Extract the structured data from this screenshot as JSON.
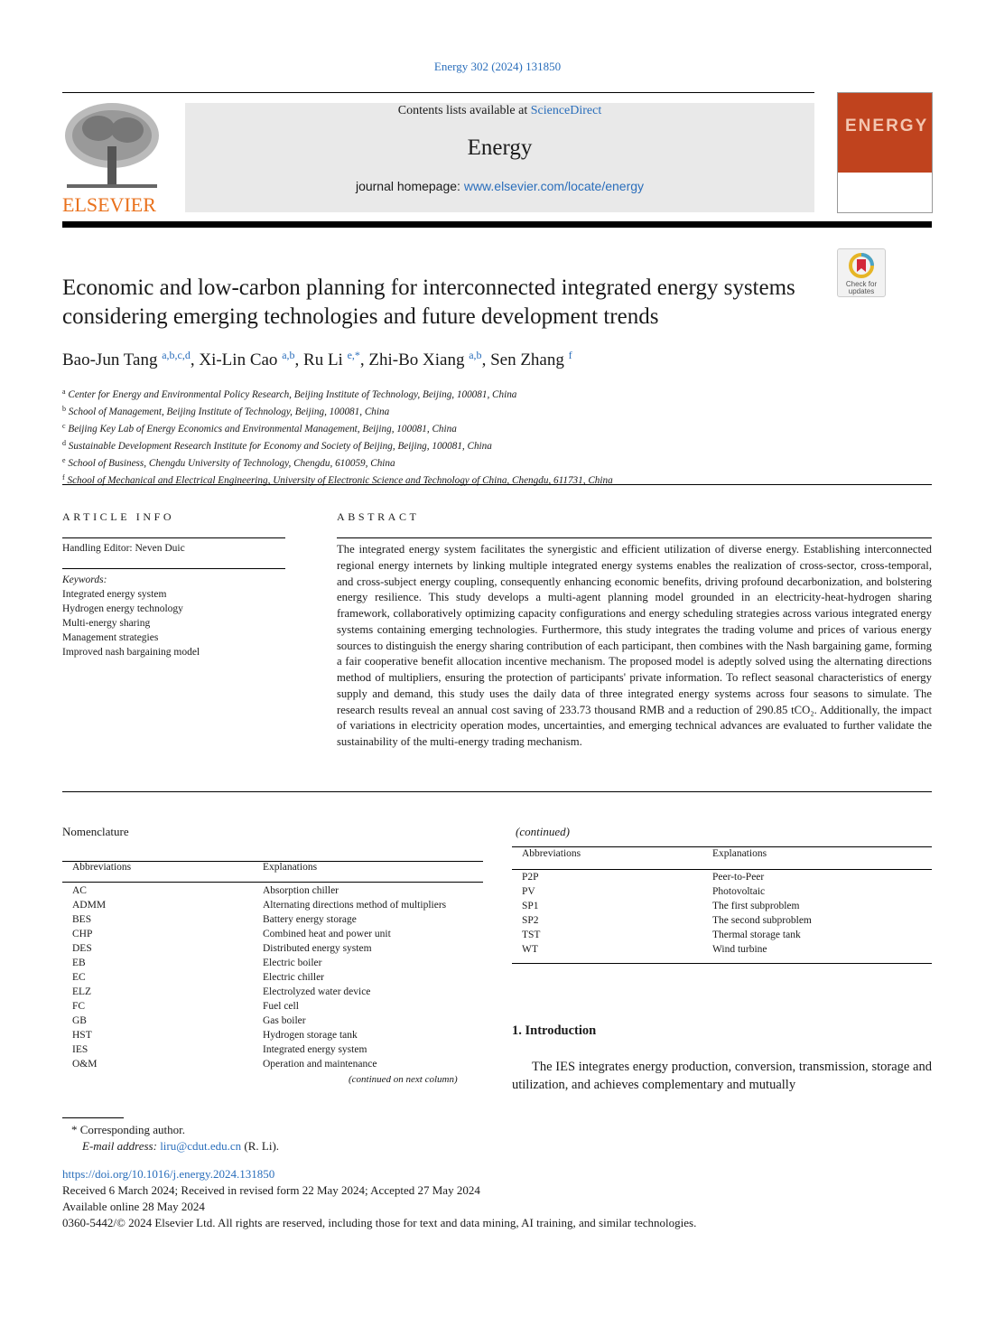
{
  "header": {
    "citation": "Energy 302 (2024) 131850",
    "contents_prefix": "Contents lists available at ",
    "contents_link": "ScienceDirect",
    "journal": "Energy",
    "homepage_prefix": "journal homepage: ",
    "homepage_link": "www.elsevier.com/locate/energy",
    "publisher": "ELSEVIER",
    "cover_word": "ENERGY",
    "check_updates": "Check for updates"
  },
  "article": {
    "title": "Economic and low-carbon planning for interconnected integrated energy systems considering emerging technologies and future development trends",
    "authors": [
      {
        "name": "Bao-Jun Tang",
        "sup": "a,b,c,d"
      },
      {
        "name": "Xi-Lin Cao",
        "sup": "a,b"
      },
      {
        "name": "Ru Li",
        "sup": "e,*"
      },
      {
        "name": "Zhi-Bo Xiang",
        "sup": "a,b"
      },
      {
        "name": "Sen Zhang",
        "sup": "f"
      }
    ],
    "affiliations": [
      {
        "key": "a",
        "text": "Center for Energy and Environmental Policy Research, Beijing Institute of Technology, Beijing, 100081, China"
      },
      {
        "key": "b",
        "text": "School of Management, Beijing Institute of Technology, Beijing, 100081, China"
      },
      {
        "key": "c",
        "text": "Beijing Key Lab of Energy Economics and Environmental Management, Beijing, 100081, China"
      },
      {
        "key": "d",
        "text": "Sustainable Development Research Institute for Economy and Society of Beijing, Beijing, 100081, China"
      },
      {
        "key": "e",
        "text": "School of Business, Chengdu University of Technology, Chengdu, 610059, China"
      },
      {
        "key": "f",
        "text": "School of Mechanical and Electrical Engineering, University of Electronic Science and Technology of China, Chengdu, 611731, China"
      }
    ]
  },
  "info": {
    "heading": "ARTICLE INFO",
    "handling_editor": "Handling Editor: Neven Duic",
    "keywords_label": "Keywords:",
    "keywords": [
      "Integrated energy system",
      "Hydrogen energy technology",
      "Multi-energy sharing",
      "Management strategies",
      "Improved nash bargaining model"
    ]
  },
  "abstract": {
    "heading": "ABSTRACT",
    "text": "The integrated energy system facilitates the synergistic and efficient utilization of diverse energy. Establishing interconnected regional energy internets by linking multiple integrated energy systems enables the realization of cross-sector, cross-temporal, and cross-subject energy coupling, consequently enhancing economic benefits, driving profound decarbonization, and bolstering energy resilience. This study develops a multi-agent planning model grounded in an electricity-heat-hydrogen sharing framework, collaboratively optimizing capacity configurations and energy scheduling strategies across various integrated energy systems containing emerging technologies. Furthermore, this study integrates the trading volume and prices of various energy sources to distinguish the energy sharing contribution of each participant, then combines with the Nash bargaining game, forming a fair cooperative benefit allocation incentive mechanism. The proposed model is adeptly solved using the alternating directions method of multipliers, ensuring the protection of participants' private information. To reflect seasonal characteristics of energy supply and demand, this study uses the daily data of three integrated energy systems across four seasons to simulate. The research results reveal an annual cost saving of 233.73 thousand RMB and a reduction of 290.85 tCO₂. Additionally, the impact of variations in electricity operation modes, uncertainties, and emerging technical advances are evaluated to further validate the sustainability of the multi-energy trading mechanism."
  },
  "nomenclature": {
    "heading": "Nomenclature",
    "continued_heading": "(continued)",
    "col1": "Abbreviations",
    "col2": "Explanations",
    "continued_note": "(continued on next column)",
    "rows": [
      [
        "AC",
        "Absorption chiller"
      ],
      [
        "ADMM",
        "Alternating directions method of multipliers"
      ],
      [
        "BES",
        "Battery energy storage"
      ],
      [
        "CHP",
        "Combined heat and power unit"
      ],
      [
        "DES",
        "Distributed energy system"
      ],
      [
        "EB",
        "Electric boiler"
      ],
      [
        "EC",
        "Electric chiller"
      ],
      [
        "ELZ",
        "Electrolyzed water device"
      ],
      [
        "FC",
        "Fuel cell"
      ],
      [
        "GB",
        "Gas boiler"
      ],
      [
        "HST",
        "Hydrogen storage tank"
      ],
      [
        "IES",
        "Integrated energy system"
      ],
      [
        "O&M",
        "Operation and maintenance"
      ]
    ],
    "rows2": [
      [
        "P2P",
        "Peer-to-Peer"
      ],
      [
        "PV",
        "Photovoltaic"
      ],
      [
        "SP1",
        "The first subproblem"
      ],
      [
        "SP2",
        "The second subproblem"
      ],
      [
        "TST",
        "Thermal storage tank"
      ],
      [
        "WT",
        "Wind turbine"
      ]
    ]
  },
  "intro": {
    "heading": "1.  Introduction",
    "text": "The IES integrates energy production, conversion, transmission, storage and utilization, and achieves complementary and mutually"
  },
  "footnotes": {
    "corresponding": "Corresponding author.",
    "email_label": "E-mail address: ",
    "email": "liru@cdut.edu.cn",
    "email_suffix": " (R. Li).",
    "doi": "https://doi.org/10.1016/j.energy.2024.131850",
    "received": "Received 6 March 2024; Received in revised form 22 May 2024; Accepted 27 May 2024",
    "available": "Available online 28 May 2024",
    "copyright": "0360-5442/© 2024 Elsevier Ltd. All rights are reserved, including those for text and data mining, AI training, and similar technologies."
  },
  "colors": {
    "link": "#2a6ebb",
    "elsevier_orange": "#e9711c",
    "cover_red": "#c0431e"
  }
}
